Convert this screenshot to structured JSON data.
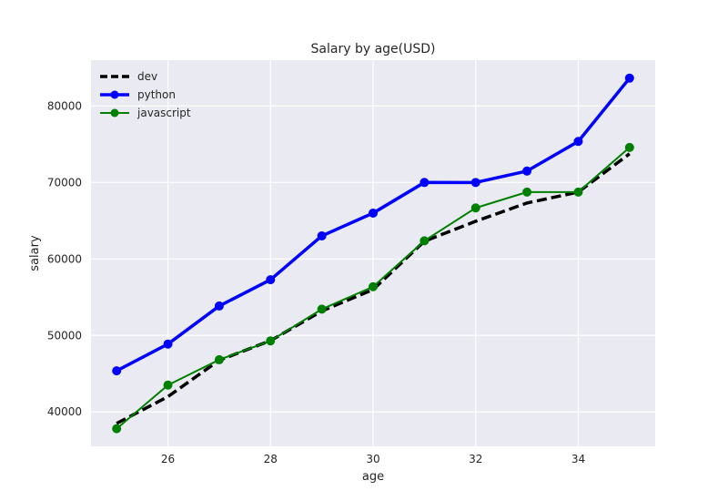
{
  "chart_data": {
    "type": "line",
    "title": "Salary by age(USD)",
    "xlabel": "age",
    "ylabel": "salary",
    "xlim": [
      24.5,
      35.5
    ],
    "ylim": [
      35500,
      86000
    ],
    "xticks": [
      26,
      28,
      30,
      32,
      34
    ],
    "yticks": [
      40000,
      50000,
      60000,
      70000,
      80000
    ],
    "grid": true,
    "legend_position": "top-left",
    "x": [
      25,
      26,
      27,
      28,
      29,
      30,
      31,
      32,
      33,
      34,
      35
    ],
    "series": [
      {
        "name": "dev",
        "color": "#000000",
        "style": "dashed",
        "marker": "none",
        "values": [
          38496,
          42000,
          46752,
          49320,
          53200,
          56000,
          62316,
          64928,
          67317,
          68748,
          73752
        ]
      },
      {
        "name": "python",
        "color": "#0000ff",
        "style": "solid",
        "marker": "circle",
        "values": [
          45372,
          48876,
          53850,
          57287,
          63016,
          65998,
          70003,
          70000,
          71496,
          75370,
          83640
        ]
      },
      {
        "name": "javascript",
        "color": "#008000",
        "style": "solid",
        "marker": "circle",
        "values": [
          37810,
          43515,
          46823,
          49293,
          53437,
          56373,
          62375,
          66674,
          68745,
          68746,
          74583
        ]
      }
    ]
  }
}
